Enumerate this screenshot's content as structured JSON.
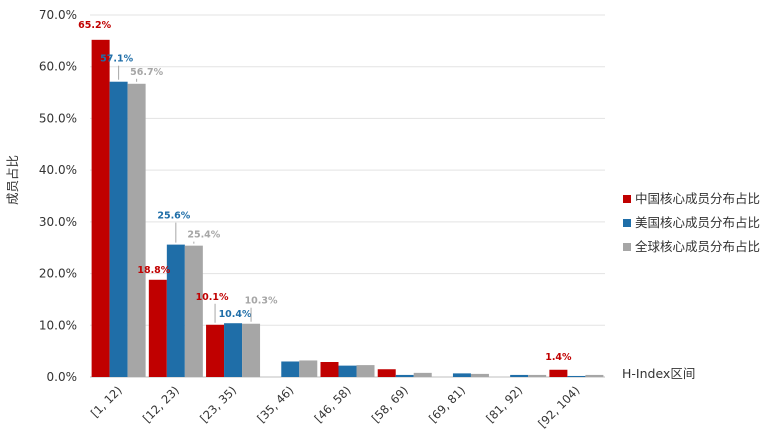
{
  "chart_data": {
    "type": "bar",
    "title": "",
    "ylabel": "成员占比",
    "xlabel": "H-Index区间",
    "ylim": [
      0,
      70
    ],
    "yticks": [
      "0.0%",
      "10.0%",
      "20.0%",
      "30.0%",
      "40.0%",
      "50.0%",
      "60.0%",
      "70.0%"
    ],
    "categories": [
      "[1, 12)",
      "[12, 23)",
      "[23, 35)",
      "[35, 46)",
      "[46, 58)",
      "[58, 69)",
      "[69, 81)",
      "[81, 92)",
      "[92, 104)"
    ],
    "series": [
      {
        "name": "中国核心成员分布占比",
        "color": "#c00000",
        "values": [
          65.2,
          18.8,
          10.1,
          0.0,
          2.9,
          1.5,
          0.0,
          0.0,
          1.4
        ],
        "labels": [
          "65.2%",
          "18.8%",
          "10.1%",
          "",
          "",
          "",
          "",
          "",
          "1.4%"
        ]
      },
      {
        "name": "美国核心成员分布占比",
        "color": "#1f6ea8",
        "values": [
          57.1,
          25.6,
          10.4,
          3.0,
          2.2,
          0.4,
          0.7,
          0.4,
          0.2
        ],
        "labels": [
          "57.1%",
          "25.6%",
          "10.4%",
          "",
          "",
          "",
          "",
          "",
          ""
        ]
      },
      {
        "name": "全球核心成员分布占比",
        "color": "#a6a6a6",
        "values": [
          56.7,
          25.4,
          10.3,
          3.2,
          2.3,
          0.8,
          0.6,
          0.4,
          0.4
        ],
        "labels": [
          "56.7%",
          "25.4%",
          "10.3%",
          "",
          "",
          "",
          "",
          "",
          ""
        ]
      }
    ],
    "grid": true,
    "legend_position": "right"
  }
}
